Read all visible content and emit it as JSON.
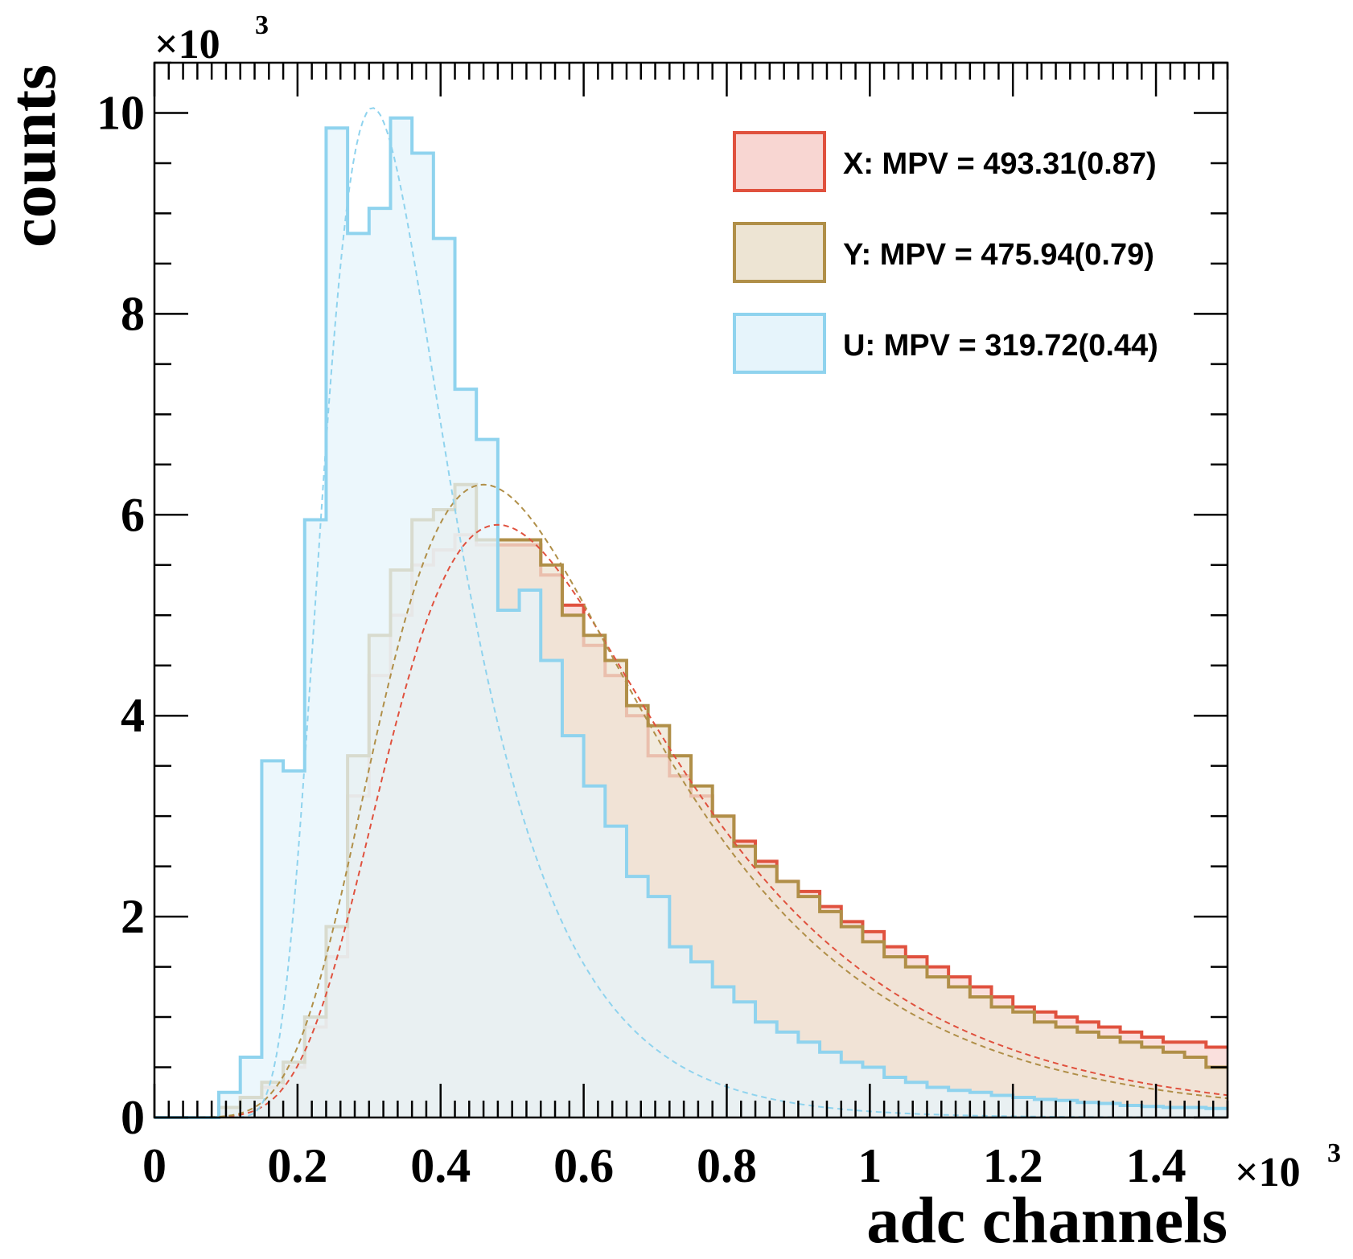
{
  "chart_data": {
    "type": "histogram",
    "title": "",
    "xlabel": "adc channels",
    "ylabel": "counts",
    "x_multiplier": "×10",
    "y_multiplier": "×10",
    "multiplier_exponent": "3",
    "xlim": [
      0,
      1.5
    ],
    "ylim": [
      0,
      10.5
    ],
    "bin_width": 0.03,
    "x_ticks": [
      0,
      0.2,
      0.4,
      0.6,
      0.8,
      1,
      1.2,
      1.4
    ],
    "x_tick_labels": [
      "0",
      "0.2",
      "0.4",
      "0.6",
      "0.8",
      "1",
      "1.2",
      "1.4"
    ],
    "y_ticks": [
      0,
      2,
      4,
      6,
      8,
      10
    ],
    "y_tick_labels": [
      "0",
      "2",
      "4",
      "6",
      "8",
      "10"
    ],
    "grid": false,
    "legend_position": "top-right",
    "series": [
      {
        "name": "X",
        "legend_label": "X: MPV = 493.31(0.87)",
        "mpv": 493.31,
        "stroke": "#e0513e",
        "fill": "#f8d6d2",
        "fill_opacity": 0.75,
        "values": [
          0.0,
          0.0,
          0.0,
          0.1,
          0.2,
          0.3,
          0.5,
          0.9,
          1.6,
          3.2,
          4.4,
          5.0,
          5.5,
          5.65,
          5.8,
          5.7,
          5.7,
          5.7,
          5.4,
          5.1,
          4.7,
          4.4,
          4.0,
          3.6,
          3.4,
          3.2,
          3.0,
          2.75,
          2.55,
          2.35,
          2.25,
          2.1,
          1.95,
          1.85,
          1.7,
          1.6,
          1.5,
          1.4,
          1.3,
          1.2,
          1.1,
          1.05,
          1.0,
          0.95,
          0.9,
          0.85,
          0.8,
          0.75,
          0.75,
          0.7
        ],
        "fit": {
          "mpv": 0.48,
          "sigma": 0.135,
          "peak": 5.9
        }
      },
      {
        "name": "Y",
        "legend_label": "Y: MPV = 475.94(0.79)",
        "mpv": 475.94,
        "stroke": "#b08f48",
        "fill": "#ede4d3",
        "fill_opacity": 0.75,
        "values": [
          0.0,
          0.0,
          0.0,
          0.1,
          0.2,
          0.35,
          0.55,
          1.0,
          1.9,
          3.6,
          4.8,
          5.45,
          5.95,
          6.05,
          6.3,
          5.75,
          5.75,
          5.75,
          5.5,
          5.0,
          4.8,
          4.55,
          4.1,
          3.9,
          3.6,
          3.3,
          3.0,
          2.7,
          2.5,
          2.35,
          2.2,
          2.05,
          1.9,
          1.75,
          1.6,
          1.5,
          1.4,
          1.3,
          1.2,
          1.1,
          1.05,
          0.95,
          0.9,
          0.85,
          0.8,
          0.75,
          0.7,
          0.65,
          0.6,
          0.5
        ],
        "fit": {
          "mpv": 0.46,
          "sigma": 0.13,
          "peak": 6.3
        }
      },
      {
        "name": "U",
        "legend_label": "U: MPV = 319.72(0.44)",
        "mpv": 319.72,
        "stroke": "#8fd3ee",
        "fill": "#e6f4fb",
        "fill_opacity": 0.75,
        "values": [
          0.0,
          0.0,
          0.0,
          0.25,
          0.6,
          3.55,
          3.45,
          5.95,
          9.85,
          8.8,
          9.05,
          9.95,
          9.6,
          8.75,
          7.25,
          6.75,
          5.05,
          5.25,
          4.55,
          3.8,
          3.3,
          2.9,
          2.4,
          2.2,
          1.7,
          1.55,
          1.3,
          1.15,
          0.95,
          0.85,
          0.75,
          0.65,
          0.55,
          0.5,
          0.4,
          0.35,
          0.3,
          0.27,
          0.25,
          0.22,
          0.2,
          0.18,
          0.17,
          0.15,
          0.14,
          0.12,
          0.11,
          0.1,
          0.1,
          0.09
        ],
        "fit": {
          "mpv": 0.305,
          "sigma": 0.062,
          "peak": 10.05
        }
      }
    ]
  }
}
